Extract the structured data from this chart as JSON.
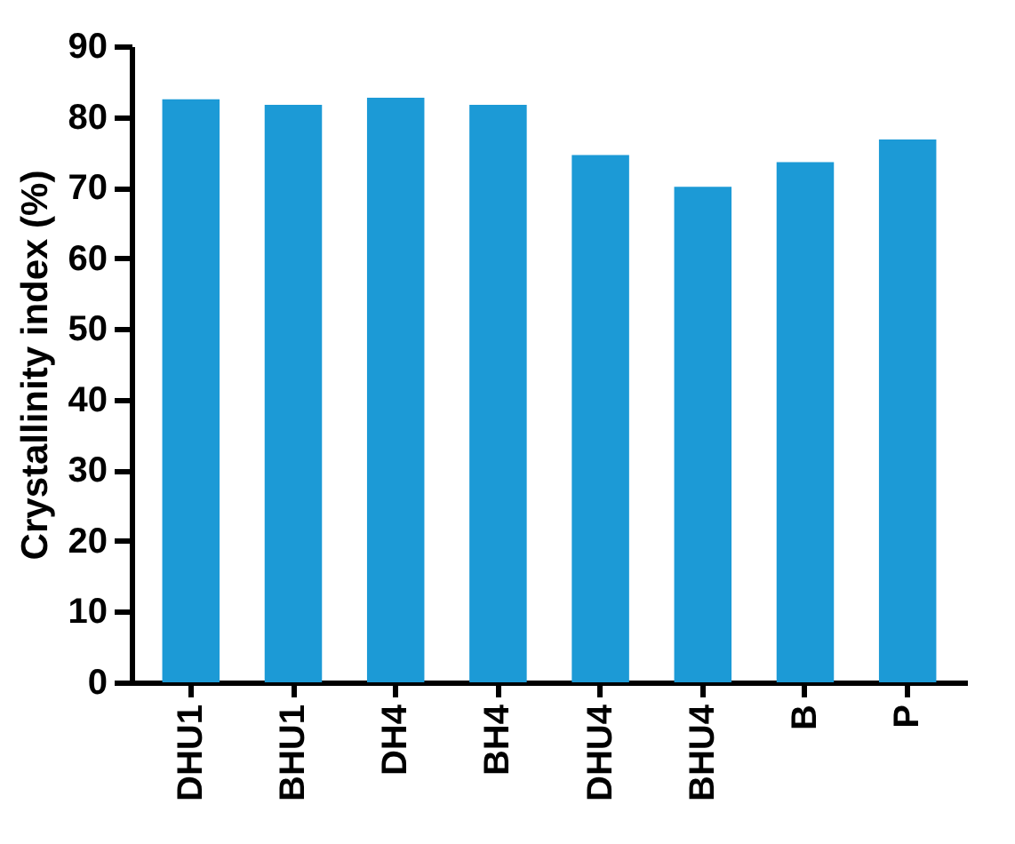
{
  "chart_data": {
    "type": "bar",
    "ylabel": "Crystallinity index (%)",
    "categories": [
      "DHU1",
      "BHU1",
      "DH4",
      "BH4",
      "DHU4",
      "BHU4",
      "B",
      "P"
    ],
    "values": [
      82.5,
      81.7,
      82.7,
      81.7,
      74.6,
      70.1,
      73.6,
      76.8
    ],
    "color": "#1c9ad6",
    "ylim": [
      0,
      90
    ],
    "yticks": [
      0,
      10,
      20,
      30,
      40,
      50,
      60,
      70,
      80,
      90
    ],
    "grid": false
  }
}
